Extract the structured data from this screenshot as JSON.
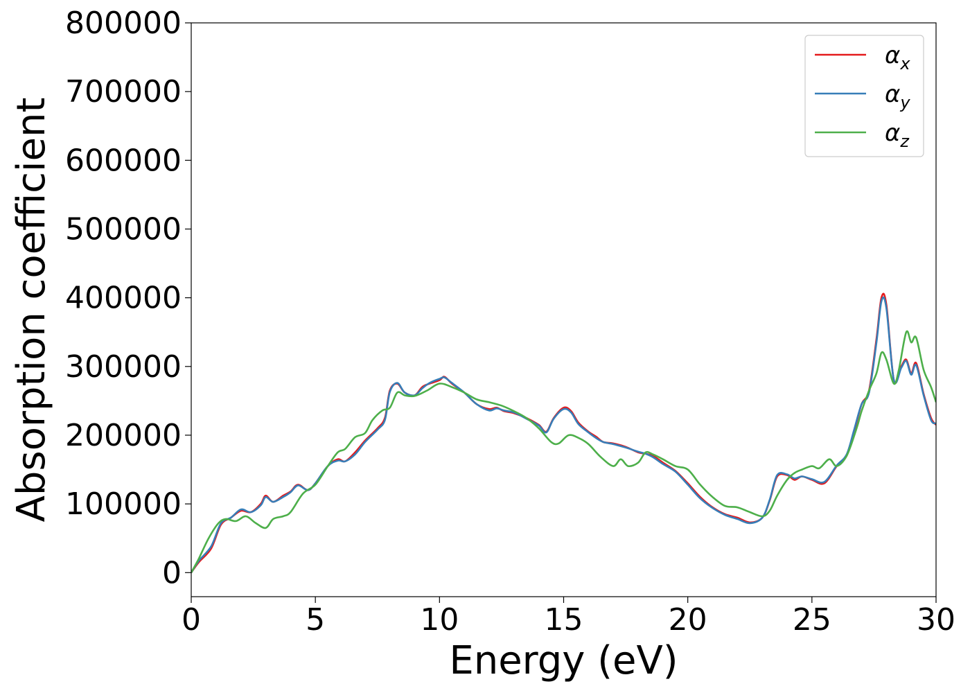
{
  "chart_data": {
    "type": "line",
    "title": "",
    "xlabel": "Energy (eV)",
    "ylabel": "Absorption coefficient",
    "xlim": [
      0,
      30
    ],
    "ylim": [
      -35000,
      800000
    ],
    "xticks": [
      0,
      5,
      10,
      15,
      20,
      25,
      30
    ],
    "yticks": [
      0,
      100000,
      200000,
      300000,
      400000,
      500000,
      600000,
      700000,
      800000
    ],
    "grid": false,
    "legend_position": "top-right",
    "legend": [
      {
        "symbol": "α",
        "sub": "x",
        "color": "#e41a1c"
      },
      {
        "symbol": "α",
        "sub": "y",
        "color": "#377eb8"
      },
      {
        "symbol": "α",
        "sub": "z",
        "color": "#4daf4a"
      }
    ],
    "series": [
      {
        "name": "αx",
        "color": "#e41a1c",
        "x": [
          0,
          0.3,
          0.8,
          1.2,
          1.6,
          2.0,
          2.4,
          2.8,
          3.0,
          3.3,
          3.7,
          4.0,
          4.3,
          4.7,
          5.0,
          5.5,
          5.9,
          6.2,
          6.6,
          7.0,
          7.5,
          7.8,
          8.0,
          8.3,
          8.6,
          9.0,
          9.3,
          9.6,
          10.0,
          10.2,
          10.5,
          11.0,
          11.5,
          12.0,
          12.3,
          12.6,
          13.0,
          13.5,
          14.0,
          14.3,
          14.6,
          15.0,
          15.3,
          15.6,
          16.0,
          16.3,
          16.6,
          17.0,
          17.5,
          18.0,
          18.3,
          18.6,
          19.0,
          19.5,
          20.0,
          20.5,
          21.0,
          21.5,
          22.0,
          22.5,
          23.0,
          23.3,
          23.6,
          24.0,
          24.3,
          24.6,
          25.0,
          25.5,
          26.0,
          26.4,
          26.7,
          27.0,
          27.3,
          27.6,
          27.8,
          28.0,
          28.3,
          28.6,
          28.8,
          29.0,
          29.2,
          29.5,
          29.8,
          30.0
        ],
        "values": [
          0,
          15000,
          35000,
          70000,
          80000,
          90000,
          88000,
          100000,
          112000,
          103000,
          112000,
          118000,
          128000,
          120000,
          130000,
          155000,
          165000,
          162000,
          175000,
          192000,
          210000,
          225000,
          265000,
          275000,
          262000,
          258000,
          270000,
          275000,
          280000,
          285000,
          275000,
          262000,
          245000,
          238000,
          240000,
          235000,
          232000,
          225000,
          215000,
          205000,
          225000,
          240000,
          235000,
          218000,
          205000,
          198000,
          190000,
          188000,
          183000,
          175000,
          173000,
          170000,
          160000,
          148000,
          130000,
          110000,
          95000,
          85000,
          80000,
          73000,
          80000,
          105000,
          140000,
          142000,
          135000,
          140000,
          135000,
          130000,
          155000,
          170000,
          205000,
          245000,
          265000,
          340000,
          400000,
          390000,
          280000,
          300000,
          310000,
          290000,
          305000,
          260000,
          225000,
          215000
        ]
      },
      {
        "name": "αy",
        "color": "#377eb8",
        "x": [
          0,
          0.3,
          0.8,
          1.2,
          1.6,
          2.0,
          2.4,
          2.8,
          3.0,
          3.3,
          3.7,
          4.0,
          4.3,
          4.7,
          5.0,
          5.5,
          5.9,
          6.2,
          6.6,
          7.0,
          7.5,
          7.8,
          8.0,
          8.3,
          8.6,
          9.0,
          9.3,
          9.6,
          10.0,
          10.2,
          10.5,
          11.0,
          11.5,
          12.0,
          12.3,
          12.6,
          13.0,
          13.5,
          14.0,
          14.3,
          14.6,
          15.0,
          15.3,
          15.6,
          16.0,
          16.3,
          16.6,
          17.0,
          17.5,
          18.0,
          18.3,
          18.6,
          19.0,
          19.5,
          20.0,
          20.5,
          21.0,
          21.5,
          22.0,
          22.5,
          23.0,
          23.3,
          23.6,
          24.0,
          24.3,
          24.6,
          25.0,
          25.5,
          26.0,
          26.4,
          26.7,
          27.0,
          27.3,
          27.6,
          27.8,
          28.0,
          28.3,
          28.6,
          28.8,
          29.0,
          29.2,
          29.5,
          29.8,
          30.0
        ],
        "values": [
          0,
          17000,
          38000,
          72000,
          80000,
          92000,
          88000,
          98000,
          110000,
          103000,
          110000,
          117000,
          127000,
          120000,
          130000,
          155000,
          163000,
          162000,
          172000,
          190000,
          208000,
          222000,
          263000,
          276000,
          262000,
          258000,
          268000,
          276000,
          282000,
          284000,
          276000,
          262000,
          245000,
          236000,
          239000,
          236000,
          233000,
          224000,
          214000,
          204000,
          224000,
          238000,
          233000,
          216000,
          204000,
          196000,
          190000,
          187000,
          182000,
          176000,
          173000,
          168000,
          158000,
          147000,
          128000,
          108000,
          94000,
          84000,
          78000,
          72000,
          80000,
          106000,
          142000,
          143000,
          137000,
          140000,
          136000,
          132000,
          156000,
          172000,
          208000,
          245000,
          262000,
          335000,
          395000,
          385000,
          280000,
          298000,
          308000,
          288000,
          302000,
          258000,
          222000,
          217000
        ]
      },
      {
        "name": "αz",
        "color": "#4daf4a",
        "x": [
          0,
          0.3,
          0.7,
          1.1,
          1.4,
          1.8,
          2.2,
          2.6,
          3.0,
          3.3,
          3.7,
          4.0,
          4.5,
          5.0,
          5.5,
          5.9,
          6.2,
          6.6,
          7.0,
          7.3,
          7.7,
          8.0,
          8.3,
          8.6,
          9.0,
          9.5,
          10.0,
          10.5,
          11.0,
          11.5,
          12.0,
          12.5,
          13.0,
          13.5,
          14.0,
          14.5,
          14.8,
          15.2,
          15.6,
          16.0,
          16.5,
          17.0,
          17.3,
          17.6,
          18.0,
          18.3,
          18.6,
          19.0,
          19.5,
          20.0,
          20.5,
          21.0,
          21.5,
          22.0,
          22.5,
          23.0,
          23.3,
          23.6,
          24.0,
          24.3,
          24.6,
          25.0,
          25.3,
          25.7,
          26.0,
          26.4,
          26.8,
          27.0,
          27.3,
          27.6,
          27.8,
          28.0,
          28.3,
          28.5,
          28.8,
          29.0,
          29.2,
          29.5,
          29.8,
          30.0
        ],
        "values": [
          0,
          20000,
          50000,
          72000,
          78000,
          75000,
          82000,
          72000,
          65000,
          78000,
          82000,
          88000,
          115000,
          128000,
          155000,
          175000,
          180000,
          197000,
          203000,
          222000,
          236000,
          240000,
          262000,
          258000,
          257000,
          265000,
          275000,
          270000,
          262000,
          252000,
          248000,
          243000,
          235000,
          225000,
          210000,
          190000,
          188000,
          200000,
          196000,
          187000,
          168000,
          155000,
          165000,
          155000,
          160000,
          175000,
          172000,
          165000,
          155000,
          150000,
          128000,
          110000,
          97000,
          95000,
          88000,
          82000,
          90000,
          112000,
          135000,
          145000,
          150000,
          155000,
          152000,
          165000,
          155000,
          170000,
          210000,
          235000,
          265000,
          290000,
          320000,
          310000,
          275000,
          295000,
          350000,
          335000,
          342000,
          295000,
          270000,
          248000
        ]
      }
    ]
  }
}
